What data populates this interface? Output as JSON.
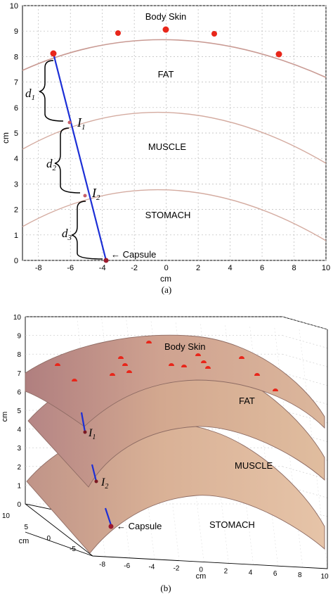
{
  "panel_a": {
    "caption": "(a)",
    "xlabel": "cm",
    "ylabel": "cm",
    "x_ticks": [
      "-8",
      "-6",
      "-4",
      "-2",
      "0",
      "2",
      "4",
      "6",
      "8",
      "10"
    ],
    "y_ticks": [
      "0",
      "1",
      "2",
      "3",
      "4",
      "5",
      "6",
      "7",
      "8",
      "9",
      "10"
    ],
    "labels": {
      "skin": "Body Skin",
      "fat": "FAT",
      "muscle": "MUSCLE",
      "stomach": "STOMACH",
      "capsule": "← Capsule"
    },
    "distances": [
      {
        "main": "d",
        "sub": "1"
      },
      {
        "main": "d",
        "sub": "2"
      },
      {
        "main": "d",
        "sub": "3"
      }
    ],
    "interfaces": [
      {
        "main": "I",
        "sub": "1"
      },
      {
        "main": "I",
        "sub": "2"
      }
    ]
  },
  "panel_b": {
    "caption": "(b)",
    "xlabel": "cm",
    "ylabel": "cm",
    "zlabel": "cm",
    "x_ticks": [
      "-8",
      "-6",
      "-4",
      "-2",
      "0",
      "2",
      "4",
      "6",
      "8",
      "10"
    ],
    "y_ticks": [
      "-5",
      "0",
      "5",
      "10"
    ],
    "z_ticks": [
      "0",
      "1",
      "2",
      "3",
      "4",
      "5",
      "6",
      "7",
      "8",
      "9",
      "10"
    ],
    "labels": {
      "skin": "Body Skin",
      "fat": "FAT",
      "muscle": "MUSCLE",
      "stomach": "STOMACH",
      "capsule": "← Capsule"
    },
    "interfaces": [
      {
        "main": "I",
        "sub": "1"
      },
      {
        "main": "I",
        "sub": "2"
      }
    ]
  },
  "colors": {
    "skin_curve": "#c99a93",
    "surface_top": "#b98a86",
    "surface_mid": "#d6ad92",
    "surface_light": "#e6c3a8",
    "sensor": "#e8261a",
    "path": "#1c2fd6",
    "capsule": "#9b1b2e"
  }
}
